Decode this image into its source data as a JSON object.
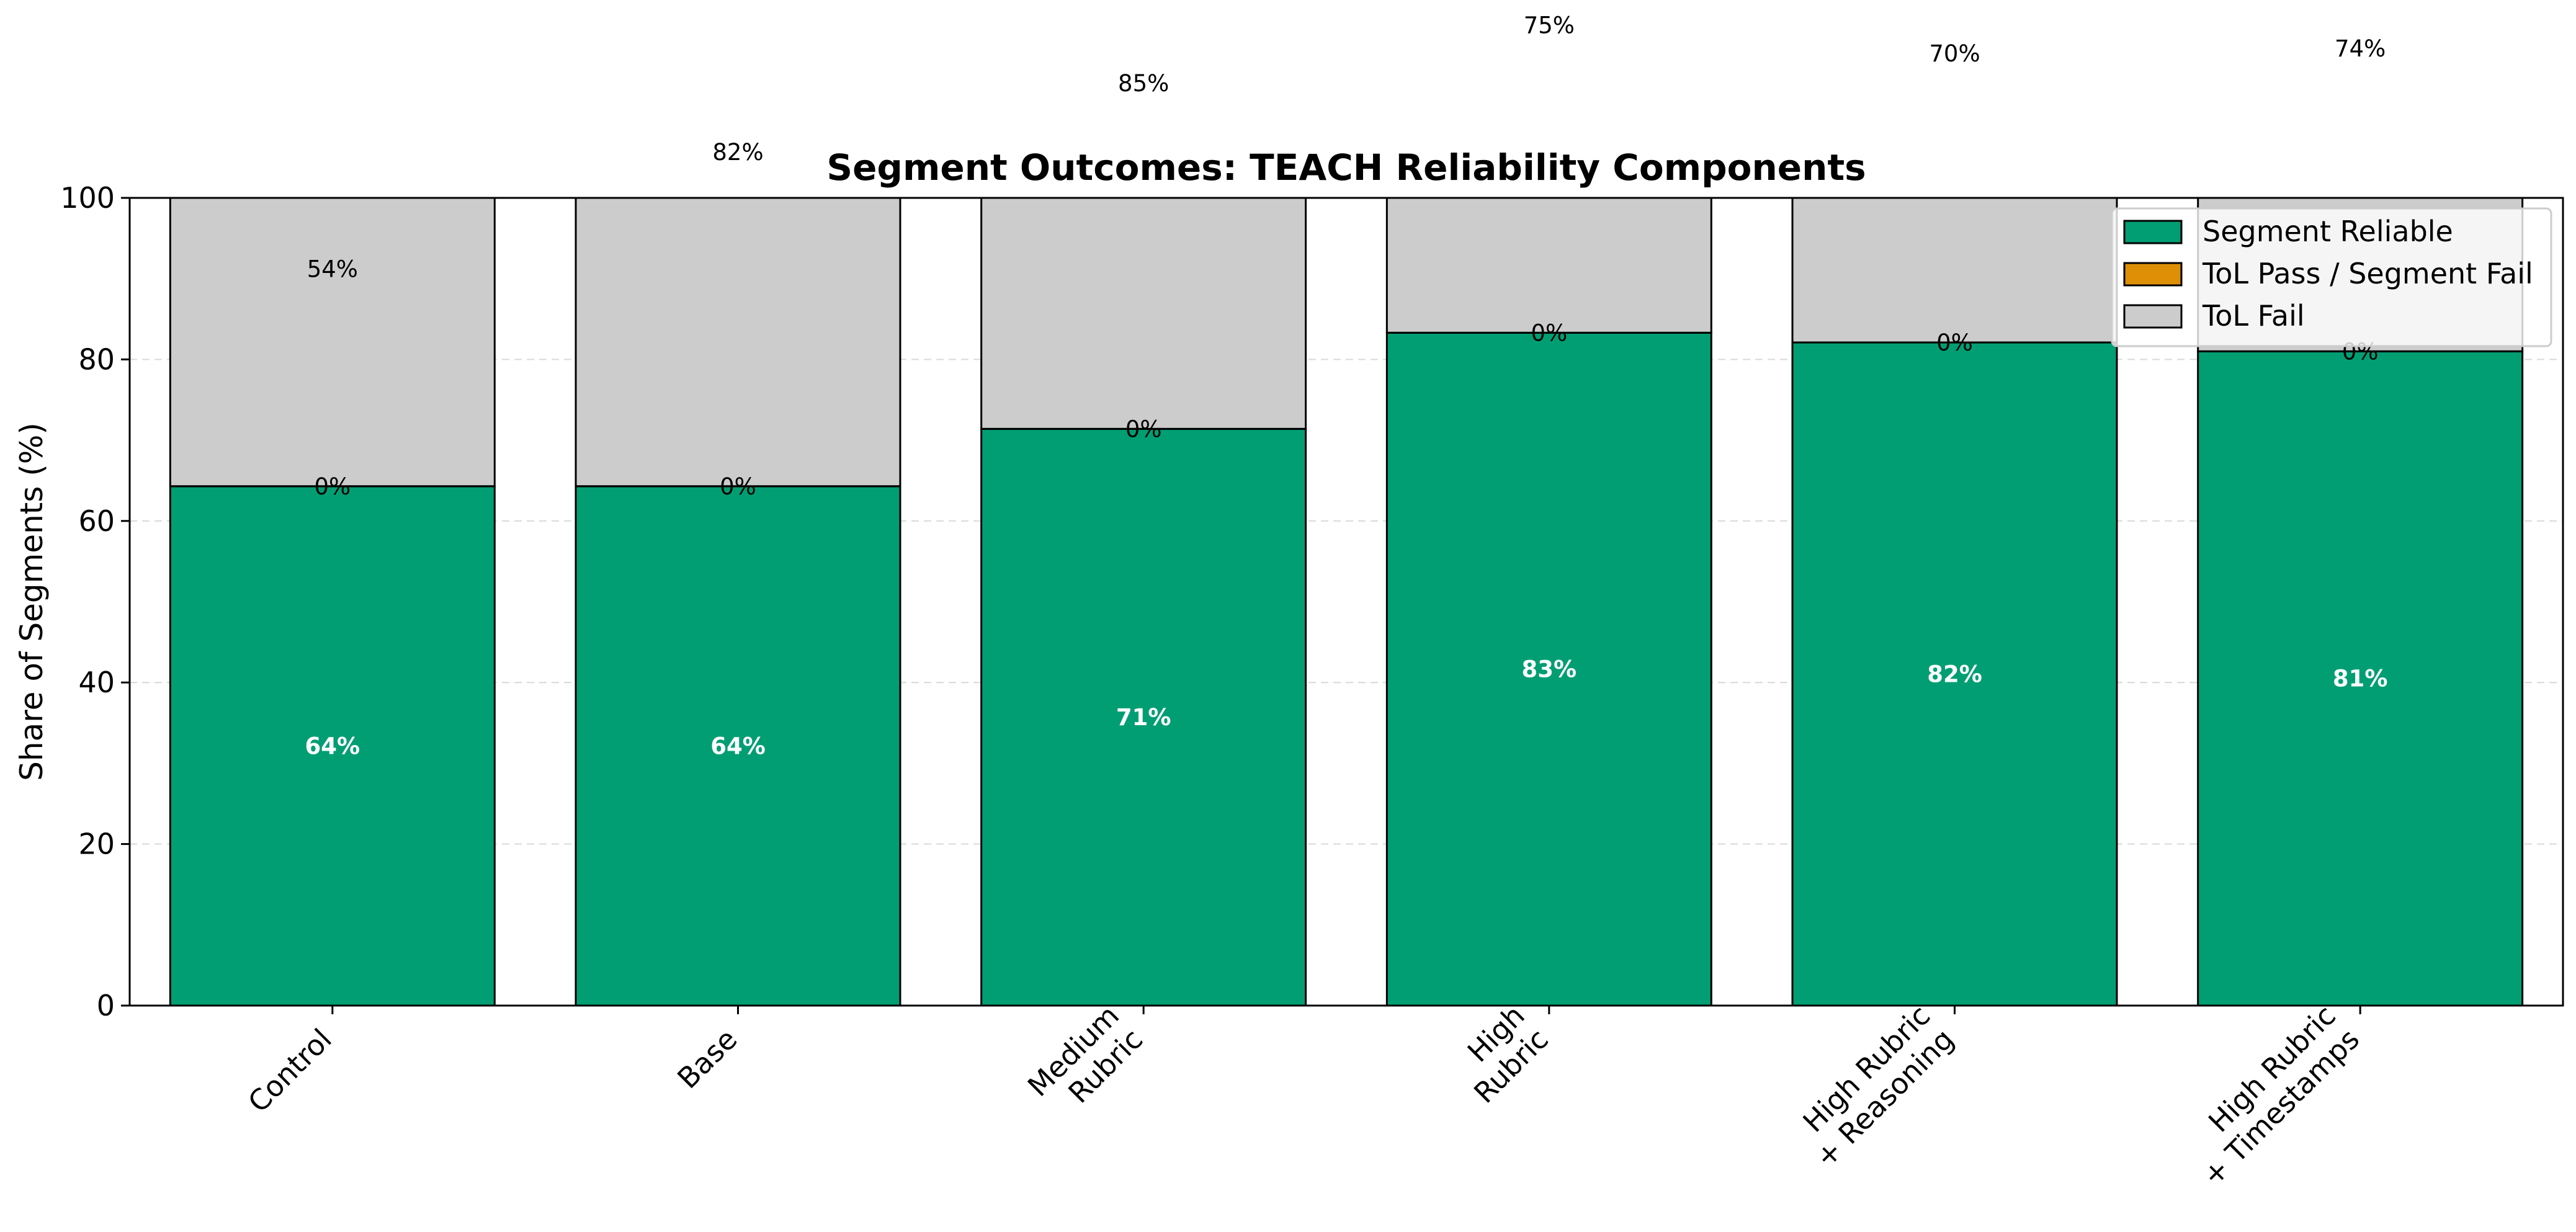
{
  "chart_data": {
    "type": "bar",
    "stacked": true,
    "title": "Segment Outcomes: TEACH Reliability Components",
    "xlabel": "",
    "ylabel": "Share of Segments (%)",
    "ylim": [
      0,
      100
    ],
    "yticks": [
      "0",
      "20",
      "40",
      "60",
      "80",
      "100"
    ],
    "grid": "y-dashed",
    "legend_position": "top-right",
    "categories": [
      [
        "Control"
      ],
      [
        "Base"
      ],
      [
        "Medium",
        "Rubric"
      ],
      [
        "High",
        "Rubric"
      ],
      [
        "High Rubric",
        "+ Reasoning"
      ],
      [
        "High Rubric",
        "+ Timestamps"
      ]
    ],
    "series": [
      {
        "name": "Segment Reliable",
        "color": "#029e73",
        "values": [
          64.3,
          64.3,
          71.4,
          83.3,
          82.1,
          81.0
        ],
        "labels": [
          "64%",
          "64%",
          "71%",
          "83%",
          "82%",
          "81%"
        ]
      },
      {
        "name": "ToL Pass / Segment Fail",
        "color": "#de8f05",
        "values": [
          0,
          0,
          0,
          0,
          0,
          0
        ],
        "labels": [
          "0%",
          "0%",
          "0%",
          "0%",
          "0%",
          "0%"
        ]
      },
      {
        "name": "ToL Fail",
        "color": "#cccccc",
        "values": [
          35.7,
          35.7,
          28.6,
          16.7,
          17.9,
          19.0
        ],
        "labels": [
          "54%",
          "82%",
          "85%",
          "75%",
          "70%",
          "74%"
        ],
        "label_y": [
          91.2,
          105.7,
          114.2,
          121.4,
          117.9,
          118.5
        ]
      }
    ]
  }
}
